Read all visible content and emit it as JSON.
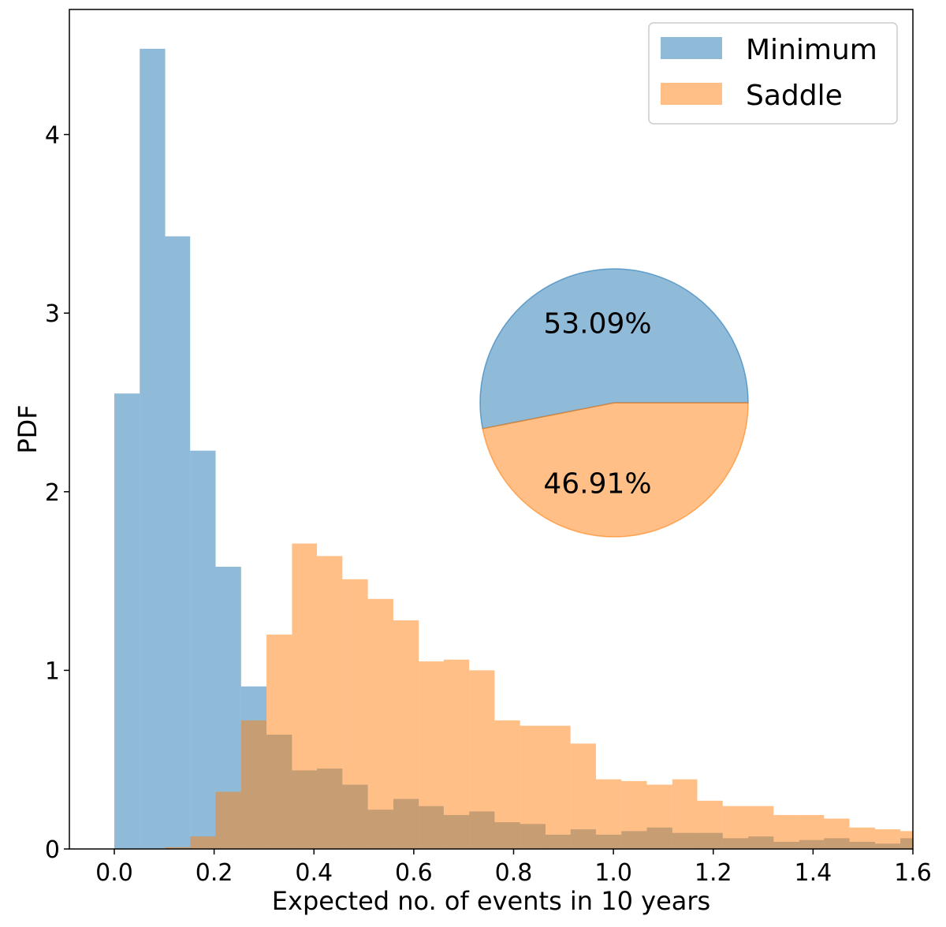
{
  "chart_data": {
    "type": "histogram",
    "title": "",
    "xlabel": "Expected no. of events in 10 years",
    "ylabel": "PDF",
    "xlim": [
      -0.09,
      1.6
    ],
    "ylim": [
      0,
      4.7
    ],
    "xticks": [
      0.0,
      0.2,
      0.4,
      0.6,
      0.8,
      1.0,
      1.2,
      1.4,
      1.6
    ],
    "xtick_labels": [
      "0.0",
      "0.2",
      "0.4",
      "0.6",
      "0.8",
      "1.0",
      "1.2",
      "1.4",
      "1.6"
    ],
    "yticks": [
      0,
      1,
      2,
      3,
      4
    ],
    "ytick_labels": [
      "0",
      "1",
      "2",
      "3",
      "4"
    ],
    "legend_position": "top-right",
    "series": [
      {
        "name": "Minimum",
        "color": "#1f77b4",
        "alpha": 0.5,
        "bins": [
          {
            "x0": 0.0,
            "x1": 0.051,
            "y": 2.55
          },
          {
            "x0": 0.051,
            "x1": 0.102,
            "y": 4.48
          },
          {
            "x0": 0.102,
            "x1": 0.152,
            "y": 3.43
          },
          {
            "x0": 0.152,
            "x1": 0.203,
            "y": 2.23
          },
          {
            "x0": 0.203,
            "x1": 0.254,
            "y": 1.58
          },
          {
            "x0": 0.254,
            "x1": 0.305,
            "y": 0.91
          },
          {
            "x0": 0.305,
            "x1": 0.356,
            "y": 0.64
          },
          {
            "x0": 0.356,
            "x1": 0.406,
            "y": 0.44
          },
          {
            "x0": 0.406,
            "x1": 0.457,
            "y": 0.45
          },
          {
            "x0": 0.457,
            "x1": 0.508,
            "y": 0.36
          },
          {
            "x0": 0.508,
            "x1": 0.559,
            "y": 0.22
          },
          {
            "x0": 0.559,
            "x1": 0.61,
            "y": 0.28
          },
          {
            "x0": 0.61,
            "x1": 0.66,
            "y": 0.24
          },
          {
            "x0": 0.66,
            "x1": 0.711,
            "y": 0.19
          },
          {
            "x0": 0.711,
            "x1": 0.762,
            "y": 0.21
          },
          {
            "x0": 0.762,
            "x1": 0.813,
            "y": 0.15
          },
          {
            "x0": 0.813,
            "x1": 0.864,
            "y": 0.14
          },
          {
            "x0": 0.864,
            "x1": 0.914,
            "y": 0.08
          },
          {
            "x0": 0.914,
            "x1": 0.965,
            "y": 0.11
          },
          {
            "x0": 0.965,
            "x1": 1.016,
            "y": 0.08
          },
          {
            "x0": 1.016,
            "x1": 1.067,
            "y": 0.1
          },
          {
            "x0": 1.067,
            "x1": 1.118,
            "y": 0.12
          },
          {
            "x0": 1.118,
            "x1": 1.168,
            "y": 0.09
          },
          {
            "x0": 1.168,
            "x1": 1.219,
            "y": 0.09
          },
          {
            "x0": 1.219,
            "x1": 1.27,
            "y": 0.06
          },
          {
            "x0": 1.27,
            "x1": 1.321,
            "y": 0.07
          },
          {
            "x0": 1.321,
            "x1": 1.372,
            "y": 0.04
          },
          {
            "x0": 1.372,
            "x1": 1.422,
            "y": 0.05
          },
          {
            "x0": 1.422,
            "x1": 1.473,
            "y": 0.06
          },
          {
            "x0": 1.473,
            "x1": 1.524,
            "y": 0.04
          },
          {
            "x0": 1.524,
            "x1": 1.575,
            "y": 0.03
          },
          {
            "x0": 1.575,
            "x1": 1.6,
            "y": 0.06
          }
        ]
      },
      {
        "name": "Saddle",
        "color": "#ff7f0e",
        "alpha": 0.5,
        "bins": [
          {
            "x0": 0.102,
            "x1": 0.152,
            "y": 0.01
          },
          {
            "x0": 0.152,
            "x1": 0.203,
            "y": 0.07
          },
          {
            "x0": 0.203,
            "x1": 0.254,
            "y": 0.32
          },
          {
            "x0": 0.254,
            "x1": 0.305,
            "y": 0.72
          },
          {
            "x0": 0.305,
            "x1": 0.356,
            "y": 1.2
          },
          {
            "x0": 0.356,
            "x1": 0.406,
            "y": 1.71
          },
          {
            "x0": 0.406,
            "x1": 0.457,
            "y": 1.64
          },
          {
            "x0": 0.457,
            "x1": 0.508,
            "y": 1.51
          },
          {
            "x0": 0.508,
            "x1": 0.559,
            "y": 1.4
          },
          {
            "x0": 0.559,
            "x1": 0.61,
            "y": 1.28
          },
          {
            "x0": 0.61,
            "x1": 0.66,
            "y": 1.05
          },
          {
            "x0": 0.66,
            "x1": 0.711,
            "y": 1.06
          },
          {
            "x0": 0.711,
            "x1": 0.762,
            "y": 1.0
          },
          {
            "x0": 0.762,
            "x1": 0.813,
            "y": 0.72
          },
          {
            "x0": 0.813,
            "x1": 0.864,
            "y": 0.69
          },
          {
            "x0": 0.864,
            "x1": 0.914,
            "y": 0.69
          },
          {
            "x0": 0.914,
            "x1": 0.965,
            "y": 0.59
          },
          {
            "x0": 0.965,
            "x1": 1.016,
            "y": 0.39
          },
          {
            "x0": 1.016,
            "x1": 1.067,
            "y": 0.38
          },
          {
            "x0": 1.067,
            "x1": 1.118,
            "y": 0.36
          },
          {
            "x0": 1.118,
            "x1": 1.168,
            "y": 0.39
          },
          {
            "x0": 1.168,
            "x1": 1.219,
            "y": 0.27
          },
          {
            "x0": 1.219,
            "x1": 1.27,
            "y": 0.24
          },
          {
            "x0": 1.27,
            "x1": 1.321,
            "y": 0.24
          },
          {
            "x0": 1.321,
            "x1": 1.372,
            "y": 0.19
          },
          {
            "x0": 1.372,
            "x1": 1.422,
            "y": 0.19
          },
          {
            "x0": 1.422,
            "x1": 1.473,
            "y": 0.17
          },
          {
            "x0": 1.473,
            "x1": 1.524,
            "y": 0.12
          },
          {
            "x0": 1.524,
            "x1": 1.575,
            "y": 0.11
          },
          {
            "x0": 1.575,
            "x1": 1.6,
            "y": 0.1
          }
        ]
      }
    ],
    "inset_pie": {
      "type": "pie",
      "slices": [
        {
          "name": "Minimum",
          "value": 53.09,
          "label": "53.09%",
          "color": "#1f77b4",
          "alpha": 0.5
        },
        {
          "name": "Saddle",
          "value": 46.91,
          "label": "46.91%",
          "color": "#ff7f0e",
          "alpha": 0.5
        }
      ]
    }
  }
}
